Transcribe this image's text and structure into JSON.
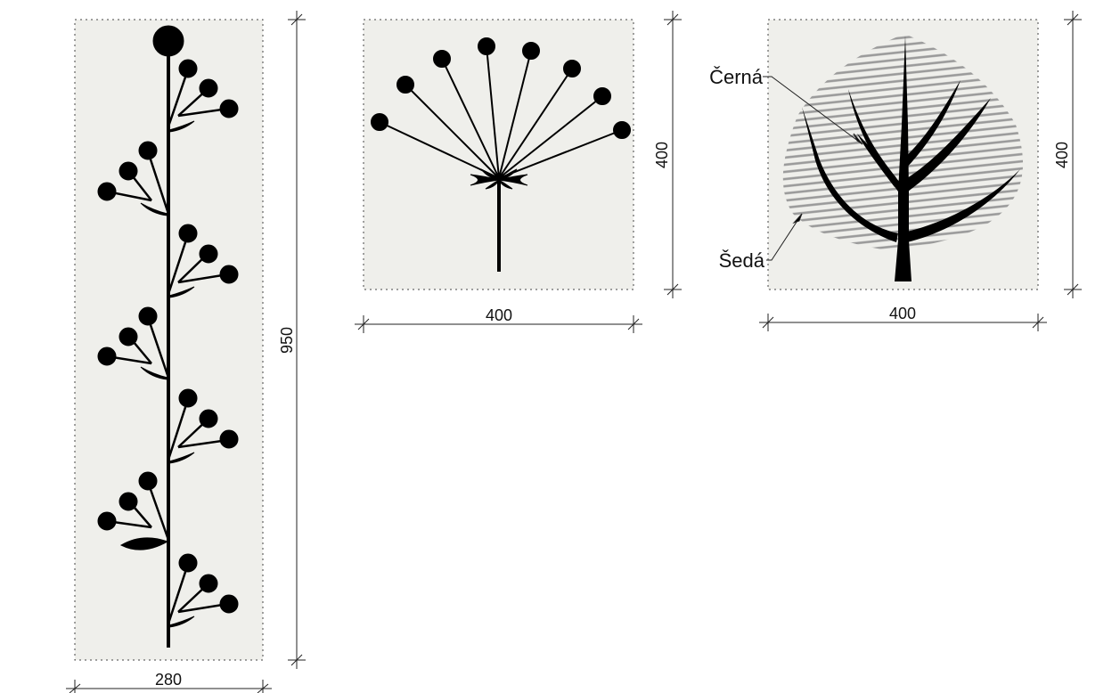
{
  "colors": {
    "panel_fill": "#efefeb",
    "ink": "#000000",
    "hatch": "#9a9a9a",
    "dim_line": "#222222"
  },
  "panels": [
    {
      "id": "stem-plant",
      "depicts": "plant-with-berries",
      "width_label": "280",
      "height_label": "950"
    },
    {
      "id": "umbel",
      "depicts": "umbel-flower",
      "width_label": "400",
      "height_label": "400"
    },
    {
      "id": "leaf",
      "depicts": "leaf-with-veins",
      "width_label": "400",
      "height_label": "400",
      "callouts": {
        "black": "Černá",
        "grey": "Šedá"
      }
    }
  ]
}
